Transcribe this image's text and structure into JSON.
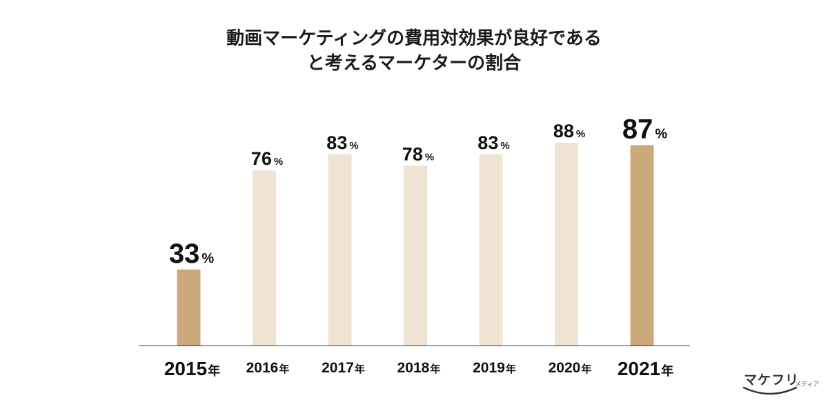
{
  "chart_data": {
    "type": "bar",
    "title_lines": [
      "動画マーケティングの費用対効果が良好である",
      "と考えるマーケターの割合"
    ],
    "categories": [
      "2015",
      "2016",
      "2017",
      "2018",
      "2019",
      "2020",
      "2021"
    ],
    "category_suffix": "年",
    "values": [
      33,
      76,
      83,
      78,
      83,
      88,
      87
    ],
    "value_suffix": "%",
    "highlighted": [
      "2015",
      "2021"
    ],
    "ylim": [
      0,
      100
    ],
    "colors": {
      "highlight": "#cba97b",
      "normal": "#efe3d3",
      "axis": "#333333",
      "text": "#111111"
    },
    "grid": false
  },
  "branding": {
    "logo_text": "マケフリ",
    "logo_sub": "メディア"
  }
}
